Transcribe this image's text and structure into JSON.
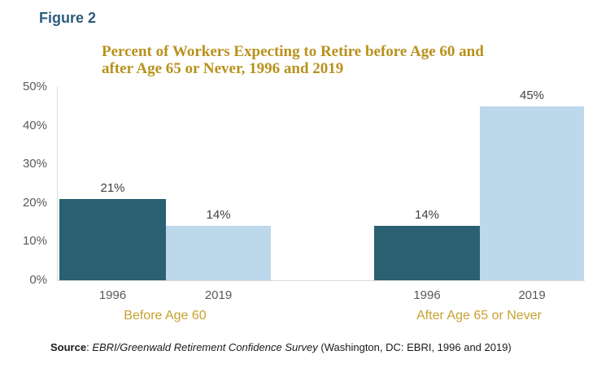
{
  "figure": {
    "label": "Figure 2"
  },
  "title_lines": [
    "Percent of Workers Expecting to Retire before Age 60 and",
    "after Age 65 or Never, 1996 and 2019"
  ],
  "chart_data": {
    "type": "bar",
    "title": "Percent of Workers Expecting to Retire before Age 60 and after Age 65 or Never, 1996 and 2019",
    "groups": [
      {
        "label": "Before Age 60",
        "bars": [
          {
            "year": "1996",
            "value": 21,
            "display": "21%"
          },
          {
            "year": "2019",
            "value": 14,
            "display": "14%"
          }
        ]
      },
      {
        "label": "After Age 65 or Never",
        "bars": [
          {
            "year": "1996",
            "value": 14,
            "display": "14%"
          },
          {
            "year": "2019",
            "value": 45,
            "display": "45%"
          }
        ]
      }
    ],
    "y_axis": {
      "min": 0,
      "max": 50,
      "ticks": [
        "50%",
        "40%",
        "30%",
        "20%",
        "10%",
        "0%"
      ]
    },
    "xlabel": "",
    "ylabel": "",
    "legend": "none",
    "grid": "off",
    "colors": {
      "1996": "#2B5F72",
      "2019": "#BDD7EB"
    }
  },
  "colors": {
    "figure_label_blue": "#2D5D7C",
    "title_gold": "#B8911C",
    "group_label_gold": "#C7A12F",
    "bar_dark_teal": "#2B5F72",
    "bar_light_blue": "#BDD7EB",
    "axis_line_gray": "#D9D9D9",
    "tick_text_gray": "#595959",
    "value_text_gray": "#404040"
  },
  "source": {
    "label": "Source",
    "separator": ": ",
    "italic_text": "EBRI/Greenwald Retirement Confidence Survey",
    "rest_text": " (Washington, DC: EBRI, 1996 and 2019)"
  }
}
